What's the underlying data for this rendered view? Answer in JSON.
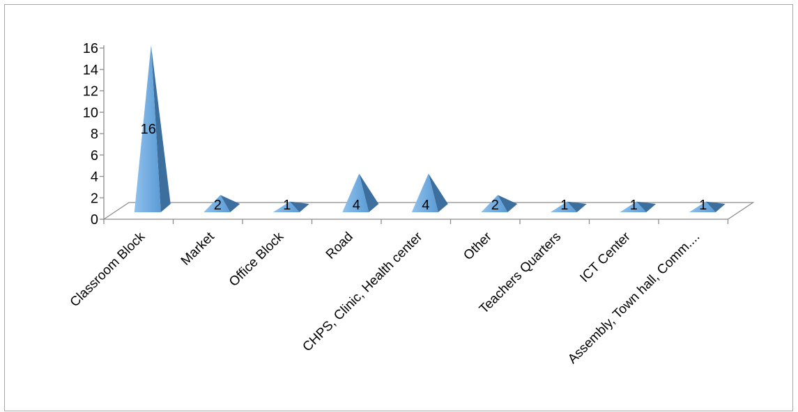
{
  "chart_data": {
    "type": "bar",
    "bar_shape": "pyramid-3d",
    "categories": [
      "Classroom Block",
      "Market",
      "Office Block",
      "Road",
      "CHPS, Clinic, Health center",
      "Other",
      "Teachers Quarters",
      "ICT Center",
      "Assembly, Town hall, Comm...."
    ],
    "values": [
      16,
      2,
      1,
      4,
      4,
      2,
      1,
      1,
      1
    ],
    "data_labels": [
      "16",
      "2",
      "1",
      "4",
      "4",
      "2",
      "1",
      "1",
      "1"
    ],
    "y_ticks": [
      "0",
      "2",
      "4",
      "6",
      "8",
      "10",
      "12",
      "14",
      "16"
    ],
    "ylim": [
      0,
      16
    ],
    "title": "",
    "xlabel": "",
    "ylabel": "",
    "grid": false,
    "legend": "none",
    "colors": {
      "bar_front": "#5b9bd5",
      "bar_front_light": "#8fc1ec",
      "bar_side": "#3d6f9e",
      "axis": "#8c8c8c"
    }
  }
}
